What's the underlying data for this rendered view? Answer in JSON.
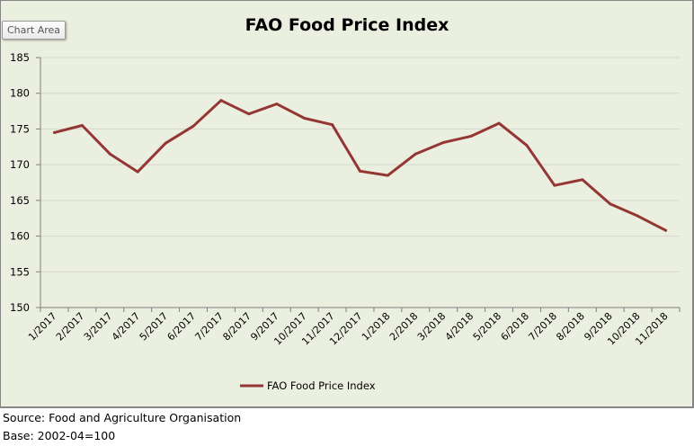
{
  "ui": {
    "chart_area_tooltip": "Chart Area"
  },
  "footer": {
    "source": "Source: Food and Agriculture Organisation",
    "base": "Base: 2002-04=100"
  },
  "colors": {
    "series": "#943634",
    "background": "#ebefdf",
    "gridline": "#d4d6d0",
    "axis": "#7f7f7f"
  },
  "chart_data": {
    "type": "line",
    "title": "FAO Food Price Index",
    "xlabel": "",
    "ylabel": "",
    "ylim": [
      150,
      185
    ],
    "yticks": [
      150,
      155,
      160,
      165,
      170,
      175,
      180,
      185
    ],
    "grid": true,
    "legend_position": "bottom",
    "categories": [
      "1/2017",
      "2/2017",
      "3/2017",
      "4/2017",
      "5/2017",
      "6/2017",
      "7/2017",
      "8/2017",
      "9/2017",
      "10/2017",
      "11/2017",
      "12/2017",
      "1/2018",
      "2/2018",
      "3/2018",
      "4/2018",
      "5/2018",
      "6/2018",
      "7/2018",
      "8/2018",
      "9/2018",
      "10/2018",
      "11/2018"
    ],
    "series": [
      {
        "name": "FAO Food Price Index",
        "values": [
          174.5,
          175.5,
          171.5,
          169.0,
          173.0,
          175.4,
          179.0,
          177.1,
          178.5,
          176.5,
          175.6,
          169.1,
          168.5,
          171.5,
          173.1,
          174.0,
          175.8,
          172.7,
          167.1,
          167.9,
          164.5,
          162.8,
          160.8
        ]
      }
    ]
  }
}
